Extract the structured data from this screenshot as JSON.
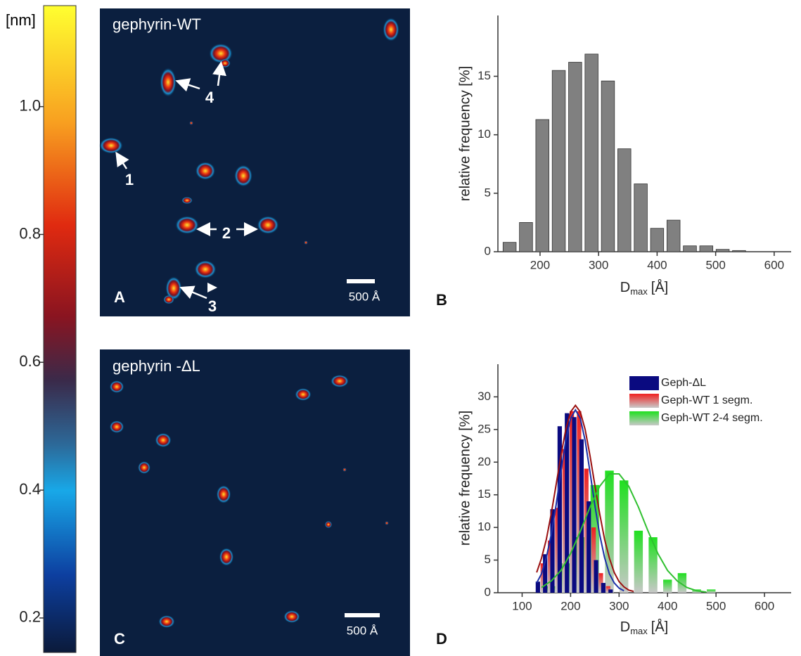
{
  "chart_data": [
    {
      "type": "colorbar",
      "label": "[nm]",
      "ylim": [
        0.146,
        1.158
      ],
      "yticks": [
        0.2,
        0.4,
        0.6,
        0.8,
        {
          "value": 1.0,
          "label": "1.0"
        }
      ]
    },
    {
      "type": "histogram",
      "panel": "B",
      "color": "#808080",
      "x_label": {
        "main": "D",
        "sub": "max",
        "unit": "[Å]"
      },
      "y_label": "relative frequency [%]",
      "bins": [
        134,
        162,
        190,
        218,
        246,
        274,
        302,
        330,
        358,
        386,
        414,
        442,
        470,
        498,
        526,
        554
      ],
      "values": [
        0.8,
        2.5,
        11.3,
        15.5,
        16.2,
        16.9,
        14.6,
        8.8,
        5.8,
        2.0,
        2.7,
        0.5,
        0.5,
        0.2,
        0.1
      ],
      "xlim": [
        128,
        629
      ],
      "ylim": [
        0,
        20.2
      ],
      "xticks": [
        200,
        300,
        400,
        500,
        600
      ],
      "yticks": [
        0,
        5,
        10,
        15
      ]
    },
    {
      "type": "histogram",
      "panel": "D",
      "x_label": {
        "main": "D",
        "sub": "max",
        "unit": "[Å]"
      },
      "y_label": "relative frequency [%]",
      "xlim": [
        50,
        655
      ],
      "ylim": [
        0,
        35
      ],
      "xticks": [
        100,
        200,
        300,
        400,
        500,
        600
      ],
      "yticks": [
        0,
        5,
        10,
        15,
        20,
        25,
        30
      ],
      "series": [
        {
          "name": "Geph-ΔL",
          "color": "#0a0a80",
          "fit_color": "#1b2fa8",
          "bins": [
            125,
            140,
            155,
            170,
            185,
            200,
            215,
            230,
            245,
            260,
            275,
            290
          ],
          "values": [
            1.7,
            5.9,
            12.8,
            25.5,
            27.5,
            26.9,
            23.5,
            14.0,
            5.0,
            1.5,
            0.5
          ],
          "fit_x": [
            130,
            140,
            150,
            160,
            170,
            180,
            190,
            200,
            210,
            220,
            230,
            240,
            250,
            260,
            270,
            280,
            290,
            300,
            310
          ],
          "fit_values": [
            1.5,
            2.9,
            5.4,
            8.9,
            13.4,
            18.5,
            23.3,
            26.7,
            28,
            26.7,
            23.3,
            18.5,
            13.4,
            8.9,
            5.4,
            2.9,
            1.5,
            0.7,
            0.3
          ]
        },
        {
          "name": "Geph-WT 1 segm.",
          "color": "#f02020",
          "fit_color": "#9a1010",
          "bins": [
            135,
            150,
            165,
            180,
            195,
            210,
            225,
            240,
            255,
            270,
            285
          ],
          "values": [
            4.5,
            8.0,
            13.0,
            22.0,
            27.8,
            27.8,
            19.0,
            10.0,
            3.0,
            1.0
          ],
          "fit_x": [
            130,
            140,
            150,
            160,
            170,
            180,
            190,
            200,
            210,
            220,
            230,
            240,
            250,
            260,
            270,
            280,
            290,
            300,
            310,
            320,
            330
          ],
          "fit_values": [
            3.1,
            5.3,
            8.2,
            12.1,
            16.5,
            21.0,
            25.0,
            27.7,
            28.7,
            27.7,
            25.0,
            21.0,
            16.5,
            12.1,
            8.2,
            5.3,
            3.1,
            1.7,
            0.9,
            0.4,
            0.2
          ]
        },
        {
          "name": "Geph-WT 2-4 segm.",
          "color": "#20e020",
          "fit_color": "#30c030",
          "bins": [
            145,
            175,
            205,
            235,
            265,
            295,
            325,
            355,
            385,
            415,
            445,
            475,
            505
          ],
          "values": [
            1.0,
            4.5,
            8.5,
            16.5,
            18.7,
            17.2,
            9.5,
            8.5,
            2.0,
            3.0,
            0.5,
            0.5
          ],
          "fit_x": [
            140,
            160,
            180,
            200,
            220,
            240,
            260,
            280,
            300,
            320,
            340,
            360,
            380,
            400,
            420,
            440,
            460,
            480
          ],
          "fit_values": [
            0.8,
            1.8,
            3.4,
            6.0,
            9.4,
            13.1,
            16.3,
            18.2,
            18.2,
            16.3,
            13.1,
            9.4,
            6.0,
            3.4,
            1.8,
            0.8,
            0.3,
            0.1
          ]
        }
      ]
    }
  ],
  "images": [
    {
      "label": "gephyrin-WT",
      "panel": "A",
      "scale_bar": "500 Å",
      "annotations": [
        "1",
        "2",
        "3",
        "4"
      ]
    },
    {
      "label": "gephyrin -ΔL",
      "panel": "C",
      "scale_bar": "500 Å"
    }
  ]
}
